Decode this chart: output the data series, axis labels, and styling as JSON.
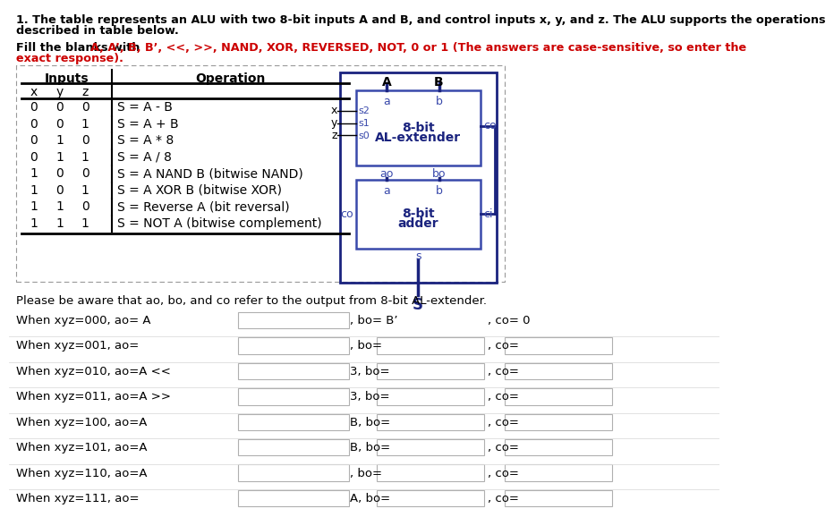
{
  "title_line1": "1. The table represents an ALU with two 8-bit inputs A and B, and control inputs x, y, and z. The ALU supports the operations",
  "title_line2": "described in table below.",
  "fill_black": "Fill the blanks with ",
  "fill_red1": "A, A’, B, B’, <<, >>, NAND, XOR, REVERSED, NOT, 0 or 1 (The answers are case-sensitive, so enter the",
  "fill_red2": "exact response).",
  "table_rows": [
    [
      "0",
      "0",
      "0",
      "S = A - B"
    ],
    [
      "0",
      "0",
      "1",
      "S = A + B"
    ],
    [
      "0",
      "1",
      "0",
      "S = A * 8"
    ],
    [
      "0",
      "1",
      "1",
      "S = A / 8"
    ],
    [
      "1",
      "0",
      "0",
      "S = A NAND B (bitwise NAND)"
    ],
    [
      "1",
      "0",
      "1",
      "S = A XOR B (bitwise XOR)"
    ],
    [
      "1",
      "1",
      "0",
      "S = Reverse A (bit reversal)"
    ],
    [
      "1",
      "1",
      "1",
      "S = NOT A (bitwise complement)"
    ]
  ],
  "awareness_text": "Please be aware that ao, bo, and co refer to the output from 8-bit AL-extender.",
  "fill_rows": [
    {
      "label": "When xyz=000, ao= A",
      "c2pre": ", bo= B’",
      "c3pre": ", co= 0",
      "b1": true,
      "b2": false,
      "b3": false
    },
    {
      "label": "When xyz=001, ao=",
      "c2pre": ", bo=",
      "c3pre": ", co=",
      "b1": true,
      "b2": true,
      "b3": true
    },
    {
      "label": "When xyz=010, ao=A <<",
      "c2pre": "3, bo=",
      "c3pre": ", co=",
      "b1": true,
      "b2": true,
      "b3": true
    },
    {
      "label": "When xyz=011, ao=A >>",
      "c2pre": "3, bo=",
      "c3pre": ", co=",
      "b1": true,
      "b2": true,
      "b3": true
    },
    {
      "label": "When xyz=100, ao=A",
      "c2pre": "B, bo=",
      "c3pre": ", co=",
      "b1": true,
      "b2": true,
      "b3": true
    },
    {
      "label": "When xyz=101, ao=A",
      "c2pre": "B, bo=",
      "c3pre": ", co=",
      "b1": true,
      "b2": true,
      "b3": true
    },
    {
      "label": "When xyz=110, ao=A",
      "c2pre": ", bo=",
      "c3pre": ", co=",
      "b1": true,
      "b2": true,
      "b3": true
    },
    {
      "label": "When xyz=111, ao=",
      "c2pre": "A, bo=",
      "c3pre": ", co=",
      "b1": true,
      "b2": true,
      "b3": true
    }
  ],
  "bg": "#ffffff",
  "black": "#000000",
  "red": "#cc0000",
  "blue": "#1a237e",
  "blue_light": "#3949ab",
  "box_edge": "#b0b0b0",
  "dot_edge": "#999999"
}
